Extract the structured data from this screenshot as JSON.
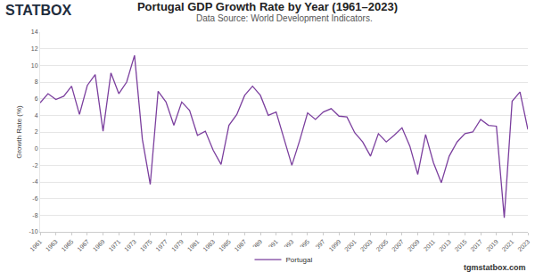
{
  "chart_data": {
    "type": "line",
    "title": "Portugal GDP Growth Rate by Year (1961–2023)",
    "subtitle": "Data Source: World Development Indicators.",
    "y_label": "Growth Rate (%)",
    "annotations": [
      "STATBOX",
      "tgmstatbox.com"
    ],
    "x": [
      1961,
      1962,
      1963,
      1964,
      1965,
      1966,
      1967,
      1968,
      1969,
      1970,
      1971,
      1972,
      1973,
      1974,
      1975,
      1976,
      1977,
      1978,
      1979,
      1980,
      1981,
      1982,
      1983,
      1984,
      1985,
      1986,
      1987,
      1988,
      1989,
      1990,
      1991,
      1992,
      1993,
      1994,
      1995,
      1996,
      1997,
      1998,
      1999,
      2000,
      2001,
      2002,
      2003,
      2004,
      2005,
      2006,
      2007,
      2008,
      2009,
      2010,
      2011,
      2012,
      2013,
      2014,
      2015,
      2016,
      2017,
      2018,
      2019,
      2020,
      2021,
      2022,
      2023
    ],
    "series": [
      {
        "name": "Portugal",
        "color": "#7b3f9e",
        "values": [
          5.5,
          6.6,
          5.9,
          6.3,
          7.5,
          4.1,
          7.6,
          8.9,
          2.1,
          9.1,
          6.6,
          8.0,
          11.2,
          1.1,
          -4.3,
          6.9,
          5.6,
          2.8,
          5.6,
          4.6,
          1.6,
          2.1,
          -0.2,
          -1.9,
          2.8,
          4.1,
          6.4,
          7.5,
          6.4,
          4.0,
          4.4,
          1.1,
          -2.0,
          1.0,
          4.3,
          3.5,
          4.4,
          4.8,
          3.9,
          3.8,
          1.9,
          0.8,
          -0.9,
          1.8,
          0.8,
          1.6,
          2.5,
          0.3,
          -3.1,
          1.7,
          -1.7,
          -4.1,
          -0.9,
          0.8,
          1.8,
          2.0,
          3.5,
          2.8,
          2.7,
          -8.3,
          5.7,
          6.8,
          2.3
        ]
      }
    ],
    "xlim": [
      1961,
      2023
    ],
    "xticks": [
      1961,
      1963,
      1965,
      1967,
      1969,
      1971,
      1973,
      1975,
      1977,
      1979,
      1981,
      1983,
      1985,
      1987,
      1989,
      1991,
      1993,
      1995,
      1997,
      1999,
      2001,
      2003,
      2005,
      2007,
      2009,
      2011,
      2013,
      2015,
      2017,
      2019,
      2021,
      2023
    ],
    "ylim": [
      -10,
      14
    ],
    "yticks": [
      -10,
      -8,
      -6,
      -4,
      -2,
      0,
      2,
      4,
      6,
      8,
      10,
      12,
      14
    ],
    "grid": true,
    "legend": "bottom"
  }
}
